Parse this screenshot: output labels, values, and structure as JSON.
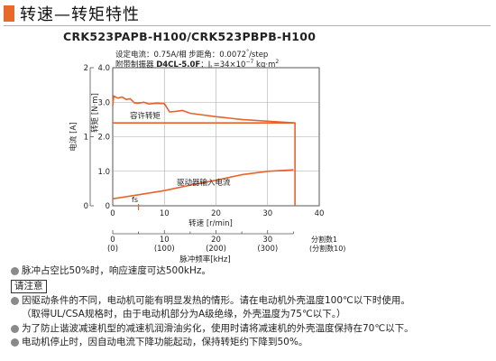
{
  "title": "转速—转矩特性",
  "model": "CRK523PAPB-H100/CRK523PBPB-H100",
  "spec": {
    "line1_prefix": "设定电流：0.75A/相  步距角：0.0072",
    "line1_sup": "°",
    "line1_suffix": "/step",
    "line2_prefix": "附带制振器 ",
    "line2_bold": "D4CL-5.0F",
    "line2_mid": "：J",
    "line2_sub": "L",
    "line2_eq": "=34×10",
    "line2_sup": "−7",
    "line2_unit": " kg·m",
    "line2_sup2": "2"
  },
  "chart_data": {
    "type": "line",
    "xlabel": "转速 [r/min]",
    "xlabel2": "脉冲频率[kHz]",
    "ylabel_right": "转矩 [N·m]",
    "ylabel_left": "电流 [A]",
    "xlim": [
      0,
      40
    ],
    "ylim": [
      0,
      4
    ],
    "ylim_current": [
      0,
      2
    ],
    "xticks": [
      "0",
      "10",
      "20",
      "30",
      "40"
    ],
    "yticks": [
      "0",
      "1.0",
      "2.0",
      "3.0",
      "4.0"
    ],
    "yticks_current": [
      "0",
      "1",
      "2"
    ],
    "x2ticks": [
      {
        "x": 0,
        "label": "(0)"
      },
      {
        "x": 10,
        "label": "(100)"
      },
      {
        "x": 20,
        "label": "(200)"
      },
      {
        "x": 30,
        "label": "(300)"
      }
    ],
    "subdiv_label": "分割数1",
    "subdiv_label2": "(分割数10)",
    "x2_top": [
      "0",
      "10",
      "20",
      "30"
    ],
    "series": [
      {
        "name": "容许转矩",
        "color": "#e8632a",
        "x": [
          0,
          29.9,
          30.5,
          35.3,
          35.3
        ],
        "y": [
          2.4,
          2.4,
          2.4,
          2.4,
          0
        ]
      },
      {
        "name": "",
        "color": "#e8632a",
        "x": [
          0,
          0.2,
          1.0,
          1.8,
          2.6,
          3.4,
          4.2,
          5.0,
          6.0,
          7.0,
          8.5,
          10.0,
          11.0,
          12.0,
          13.5,
          15.0,
          17.0,
          20.0,
          25.0,
          30.0,
          35.3
        ],
        "y": [
          2.9,
          3.18,
          3.12,
          3.15,
          3.08,
          3.1,
          2.98,
          2.97,
          3.0,
          2.95,
          2.97,
          2.96,
          2.72,
          2.73,
          2.76,
          2.68,
          2.64,
          2.58,
          2.5,
          2.45,
          2.4
        ]
      },
      {
        "name": "驱动器输入电流",
        "color": "#e8632a",
        "x": [
          0,
          5,
          10,
          15,
          20,
          25,
          30,
          35
        ],
        "y": [
          0.1,
          0.16,
          0.22,
          0.3,
          0.37,
          0.45,
          0.5,
          0.52
        ]
      }
    ],
    "fs_label": "fs",
    "fs_x": 5,
    "grid": true
  },
  "notes": {
    "line1": "脉冲占空比50%时，响应速度可达500kHz。",
    "caution": "请注意",
    "line2": "因驱动条件的不同，电动机可能有明显发热的情形。请在电动机外壳温度100℃以下时使用。",
    "line3": "（取得UL/CSA规格时，由于电动机部分为A级绝缘，外壳温度为75℃以下。）",
    "line4": "为了防止谐波减速机型的减速机润滑油劣化，使用时请将减速机的外壳温度保持在70℃以下。",
    "line5": "电动机停止时，因自动电流下降功能起动，保持转矩约下降到50%。"
  }
}
